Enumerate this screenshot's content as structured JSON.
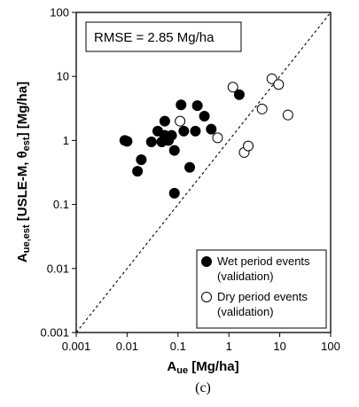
{
  "chart_data": {
    "type": "scatter",
    "x_scale": "log",
    "y_scale": "log",
    "xlim": [
      0.001,
      100
    ],
    "ylim": [
      0.001,
      100
    ],
    "x_ticks": [
      "0.001",
      "0.01",
      "0.1",
      "1",
      "10",
      "100"
    ],
    "y_ticks": [
      "0.001",
      "0.01",
      "0.1",
      "1",
      "10",
      "100"
    ],
    "xlabel": {
      "main": "A",
      "sub": "ue",
      "rest": " [Mg/ha]"
    },
    "ylabel": {
      "main": "A",
      "sub": "ue,est",
      "mid": " [USLE-M, θ",
      "sub2": "est",
      "rest": "] [Mg/ha]"
    },
    "annotation": "RMSE = 2.85 Mg/ha",
    "reference_line": "1:1 dashed",
    "legend_position": "bottom-right",
    "series": [
      {
        "name": "Wet period events",
        "name_line2": "(validation)",
        "marker": "filled-circle",
        "color": "#000000",
        "points": [
          [
            0.009,
            1.0
          ],
          [
            0.01,
            0.97
          ],
          [
            0.016,
            0.33
          ],
          [
            0.019,
            0.5
          ],
          [
            0.03,
            0.95
          ],
          [
            0.04,
            1.4
          ],
          [
            0.048,
            0.95
          ],
          [
            0.055,
            2.0
          ],
          [
            0.055,
            1.2
          ],
          [
            0.065,
            1.0
          ],
          [
            0.075,
            1.2
          ],
          [
            0.085,
            0.7
          ],
          [
            0.085,
            0.15
          ],
          [
            0.115,
            3.6
          ],
          [
            0.13,
            1.4
          ],
          [
            0.17,
            0.38
          ],
          [
            0.22,
            1.4
          ],
          [
            0.24,
            3.5
          ],
          [
            0.33,
            2.4
          ],
          [
            0.45,
            1.5
          ],
          [
            1.6,
            5.2
          ]
        ]
      },
      {
        "name": "Dry period events",
        "name_line2": "(validation)",
        "marker": "open-circle",
        "color": "#000000",
        "points": [
          [
            0.11,
            2.0
          ],
          [
            0.6,
            1.1
          ],
          [
            1.2,
            6.8
          ],
          [
            2.0,
            0.65
          ],
          [
            2.4,
            0.82
          ],
          [
            4.5,
            3.1
          ],
          [
            7.0,
            9.2
          ],
          [
            9.5,
            7.5
          ],
          [
            14.5,
            2.5
          ]
        ]
      }
    ]
  },
  "caption": "(c)"
}
